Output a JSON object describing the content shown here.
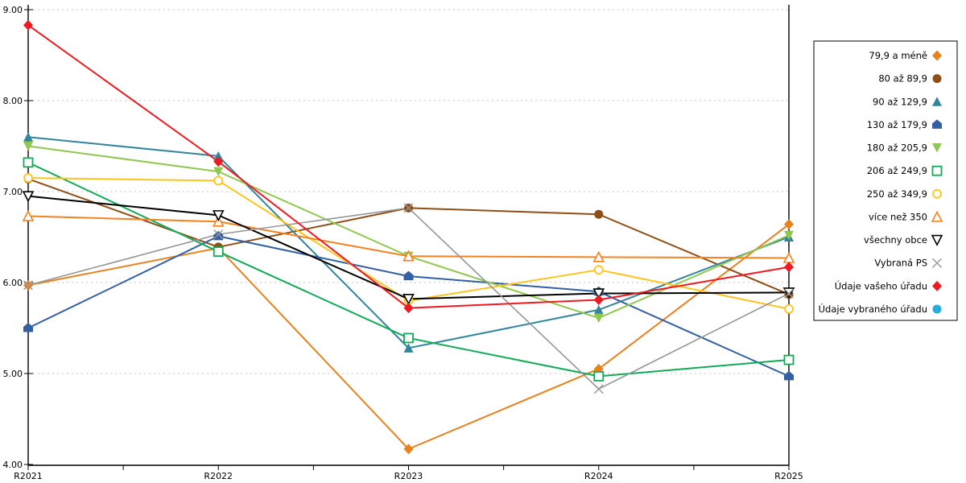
{
  "chart_data": {
    "type": "line",
    "title": "",
    "xlabel": "",
    "ylabel": "",
    "x_categories": [
      "R2021",
      "R2022",
      "R2023",
      "R2024",
      "R2025"
    ],
    "y_tick_labels": [
      "9.00",
      "8.00",
      "7.00",
      "6.00",
      "5.00",
      "4.00"
    ],
    "y_tick_values": [
      9,
      8,
      7,
      6,
      5,
      4
    ],
    "ylim": [
      4,
      9
    ],
    "grid": "horizontal-dashed",
    "grid_color": "#c6c6c6",
    "axis_color": "#000000",
    "legend_position": "right",
    "series": [
      {
        "name": "79,9 a méně",
        "color": "#E8821E",
        "marker": "diamond",
        "values": [
          5.97,
          6.38,
          4.17,
          5.05,
          6.64
        ]
      },
      {
        "name": "80 až 89,9",
        "color": "#8F4E15",
        "marker": "circle",
        "values": [
          7.14,
          6.39,
          6.82,
          6.75,
          5.87
        ]
      },
      {
        "name": "90 až 129,9",
        "color": "#31859C",
        "marker": "triangle-up",
        "values": [
          7.6,
          7.39,
          5.28,
          5.7,
          6.5
        ]
      },
      {
        "name": "130 až 179,9",
        "color": "#3360A3",
        "marker": "pentagon",
        "values": [
          5.5,
          6.51,
          6.07,
          5.9,
          4.97
        ]
      },
      {
        "name": "180 až 205,9",
        "color": "#8FC74F",
        "marker": "triangle-down",
        "values": [
          7.5,
          7.22,
          6.29,
          5.61,
          6.52
        ]
      },
      {
        "name": "206 až 249,9",
        "color": "#12AB58",
        "marker": "square-open",
        "values": [
          7.32,
          6.34,
          5.39,
          4.97,
          5.15
        ]
      },
      {
        "name": "250 až 349,9",
        "color": "#FFC41D",
        "marker": "circle-open",
        "values": [
          7.15,
          7.12,
          5.8,
          6.14,
          5.71
        ]
      },
      {
        "name": "více než 350",
        "color": "#F58220",
        "marker": "triangle-up-open",
        "values": [
          6.73,
          6.67,
          6.29,
          6.28,
          6.27
        ]
      },
      {
        "name": "všechny obce",
        "color": "#000000",
        "marker": "triangle-down-open",
        "values": [
          6.95,
          6.74,
          5.82,
          5.88,
          5.89
        ]
      },
      {
        "name": "Vybraná PS",
        "color": "#969696",
        "marker": "x",
        "values": [
          5.97,
          6.53,
          6.82,
          4.83,
          5.88
        ]
      },
      {
        "name": "Údaje vašeho úřadu",
        "color": "#F01921",
        "marker": "diamond",
        "values": [
          8.83,
          7.33,
          5.72,
          5.81,
          6.17
        ]
      },
      {
        "name": "Údaje vybraného úřadu",
        "color": "#29ABE2",
        "marker": "circle",
        "values": []
      }
    ]
  }
}
